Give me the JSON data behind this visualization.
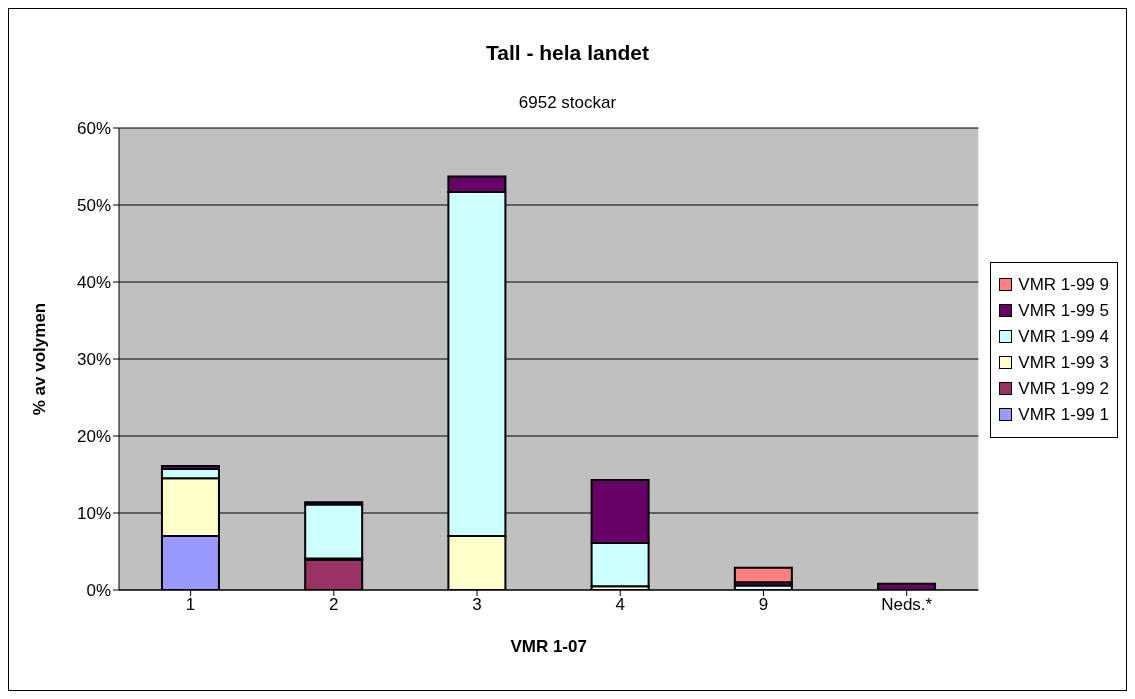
{
  "chart_data": {
    "type": "bar",
    "title": "Tall - hela landet",
    "subtitle": "6952 stockar",
    "xlabel": "VMR 1-07",
    "ylabel": "% av volymen",
    "categories": [
      "1",
      "2",
      "3",
      "4",
      "9",
      "Neds.*"
    ],
    "stacked": true,
    "ylim": [
      0,
      60
    ],
    "yticks": [
      {
        "value": 0,
        "label": "0%"
      },
      {
        "value": 10,
        "label": "10%"
      },
      {
        "value": 20,
        "label": "20%"
      },
      {
        "value": 30,
        "label": "30%"
      },
      {
        "value": 40,
        "label": "40%"
      },
      {
        "value": 50,
        "label": "50%"
      },
      {
        "value": 60,
        "label": "60%"
      }
    ],
    "grid": "y",
    "legend": "right",
    "series": [
      {
        "name": "VMR 1-99 1",
        "color": "#9999ff",
        "values": [
          7.0,
          0,
          0,
          0,
          0,
          0
        ]
      },
      {
        "name": "VMR 1-99 2",
        "color": "#993366",
        "values": [
          0,
          3.9,
          null,
          null,
          0,
          0
        ]
      },
      {
        "name": "VMR 1-99 3",
        "color": "#ffffcc",
        "values": [
          7.5,
          0.2,
          7.0,
          0.5,
          0,
          0
        ]
      },
      {
        "name": "VMR 1-99 4",
        "color": "#ccffff",
        "values": [
          1.2,
          7.0,
          44.7,
          5.6,
          0.6,
          0
        ]
      },
      {
        "name": "VMR 1-99 5",
        "color": "#660066",
        "values": [
          0.4,
          0.3,
          2.0,
          8.2,
          0.4,
          0.8
        ]
      },
      {
        "name": "VMR 1-99 9",
        "color": "#ff8080",
        "values": [
          0,
          0,
          0,
          0,
          1.9,
          0
        ]
      }
    ]
  }
}
